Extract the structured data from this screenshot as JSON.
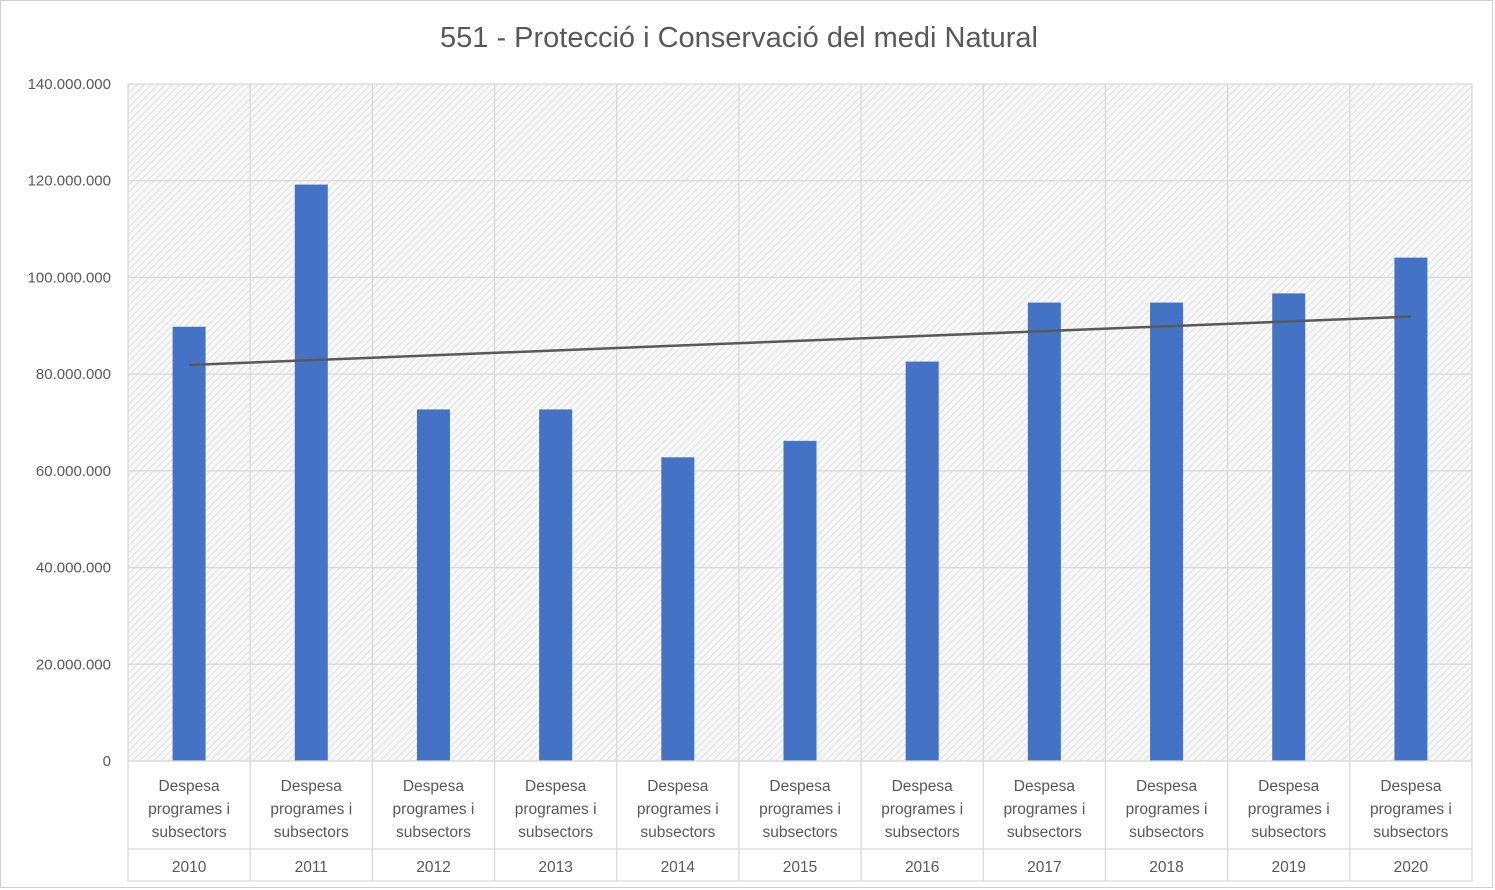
{
  "chart_data": {
    "type": "bar",
    "title": "551 - Protecció i Conservació del medi Natural",
    "series_label": "Despesa programes i subsectors",
    "series_label_lines": [
      "Despesa",
      "programes i",
      "subsectors"
    ],
    "categories": [
      "2010",
      "2011",
      "2012",
      "2013",
      "2014",
      "2015",
      "2016",
      "2017",
      "2018",
      "2019",
      "2020"
    ],
    "values": [
      89800000,
      119200000,
      72700000,
      72700000,
      62800000,
      66200000,
      82600000,
      94800000,
      94800000,
      96700000,
      104100000
    ],
    "ylim": [
      0,
      140000000
    ],
    "ytick_values": [
      0,
      20000000,
      40000000,
      60000000,
      80000000,
      100000000,
      120000000,
      140000000
    ],
    "ytick_labels": [
      "0",
      "20.000.000",
      "40.000.000",
      "60.000.000",
      "80.000.000",
      "100.000.000",
      "120.000.000",
      "140.000.000"
    ],
    "trendline": {
      "type": "linear",
      "start_value": 81900000,
      "end_value": 91900000
    },
    "grid": true,
    "legend": "none",
    "bar_color": "#4472C4",
    "trend_color": "#595959",
    "grid_color": "#d9d9d9",
    "plot_bg_color": "#f2f2f2"
  }
}
